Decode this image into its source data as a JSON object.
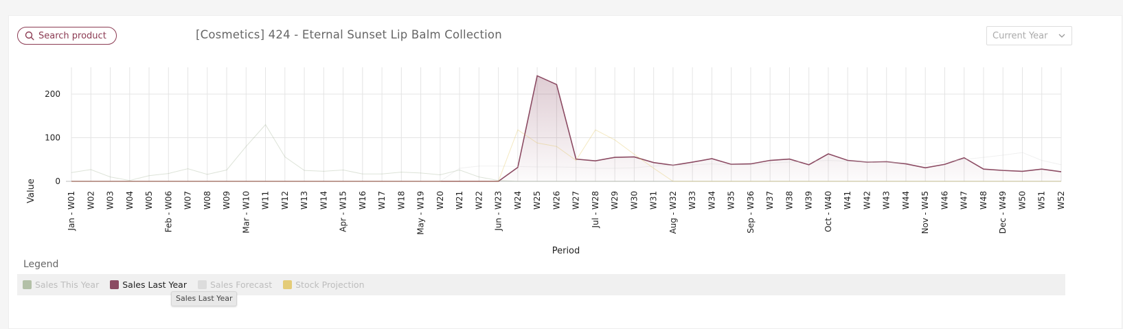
{
  "header": {
    "search_label": "Search product",
    "title": "[Cosmetics] 424 - Eternal Sunset Lip Balm Collection",
    "period_select": "Current Year"
  },
  "legend": {
    "title": "Legend",
    "items": [
      {
        "label": "Sales This Year",
        "color": "#9fb08f",
        "active": false
      },
      {
        "label": "Sales Last Year",
        "color": "#8b4a62",
        "active": true
      },
      {
        "label": "Sales Forecast",
        "color": "#d5d5d5",
        "active": false
      },
      {
        "label": "Stock Projection",
        "color": "#e0c050",
        "active": false
      }
    ],
    "tooltip": "Sales Last Year"
  },
  "chart_data": {
    "type": "line",
    "xlabel": "Period",
    "ylabel": "Value",
    "ylim": [
      0,
      260
    ],
    "yticks": [
      0,
      100,
      200
    ],
    "grid": true,
    "categories": [
      "Jan - W01",
      "W02",
      "W03",
      "W04",
      "W05",
      "Feb - W06",
      "W07",
      "W08",
      "W09",
      "Mar - W10",
      "W11",
      "W12",
      "W13",
      "W14",
      "Apr - W15",
      "W16",
      "W17",
      "W18",
      "May - W19",
      "W20",
      "W21",
      "W22",
      "Jun - W23",
      "W24",
      "W25",
      "W26",
      "W27",
      "Jul - W28",
      "W29",
      "W30",
      "W31",
      "Aug - W32",
      "W33",
      "W34",
      "W35",
      "Sep - W36",
      "W37",
      "W38",
      "W39",
      "Oct - W40",
      "W41",
      "W42",
      "W43",
      "W44",
      "Nov - W45",
      "W46",
      "W47",
      "W48",
      "Dec - W49",
      "W50",
      "W51",
      "W52"
    ],
    "series": [
      {
        "name": "Sales Last Year",
        "color": "#8b4a62",
        "visible": true,
        "values": [
          0,
          0,
          0,
          0,
          0,
          0,
          0,
          0,
          0,
          0,
          0,
          0,
          0,
          0,
          0,
          0,
          0,
          0,
          0,
          0,
          0,
          0,
          0,
          32,
          242,
          222,
          51,
          47,
          55,
          56,
          43,
          37,
          44,
          52,
          39,
          40,
          48,
          51,
          38,
          63,
          48,
          44,
          45,
          40,
          31,
          39,
          54,
          28,
          25,
          23,
          28,
          22
        ]
      },
      {
        "name": "Sales This Year",
        "color": "#9fb08f",
        "visible": false,
        "values": [
          20,
          27,
          10,
          2,
          13,
          18,
          29,
          16,
          26,
          80,
          130,
          56,
          25,
          23,
          26,
          17,
          17,
          21,
          19,
          15,
          26,
          10,
          2,
          0,
          0,
          0,
          0,
          0,
          0,
          0,
          0,
          0,
          0,
          0,
          0,
          0,
          0,
          0,
          0,
          0,
          0,
          0,
          0,
          0,
          0,
          0,
          0,
          0,
          0,
          0,
          0,
          0
        ]
      },
      {
        "name": "Sales Forecast",
        "color": "#d5d5d5",
        "visible": false,
        "values": [
          0,
          0,
          0,
          0,
          0,
          0,
          0,
          0,
          0,
          0,
          0,
          0,
          0,
          0,
          0,
          0,
          0,
          0,
          0,
          0,
          30,
          35,
          35,
          34,
          33,
          33,
          32,
          30,
          30,
          31,
          35,
          37,
          38,
          40,
          38,
          38,
          42,
          44,
          46,
          48,
          46,
          44,
          44,
          42,
          40,
          45,
          50,
          55,
          60,
          66,
          48,
          38
        ]
      },
      {
        "name": "Stock Projection",
        "color": "#e0c050",
        "visible": false,
        "values": [
          0,
          0,
          0,
          0,
          0,
          0,
          0,
          0,
          0,
          0,
          0,
          0,
          0,
          0,
          0,
          0,
          0,
          0,
          0,
          0,
          0,
          0,
          0,
          118,
          88,
          80,
          48,
          118,
          95,
          62,
          30,
          0,
          0,
          0,
          0,
          0,
          0,
          0,
          0,
          0,
          0,
          0,
          0,
          0,
          0,
          0,
          0,
          0,
          0,
          0,
          0,
          0
        ]
      }
    ]
  }
}
